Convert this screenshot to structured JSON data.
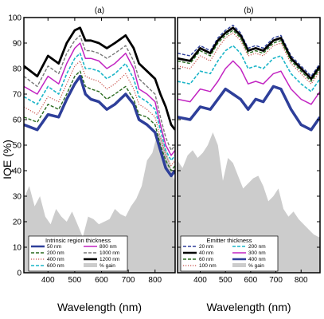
{
  "ylabel": "IQE (%)",
  "chart_data": [
    {
      "type": "line",
      "panel_label": "(a)",
      "xlabel": "Wavelength (nm)",
      "ylabel": "IQE (%)",
      "xlim": [
        310,
        875
      ],
      "ylim": [
        0,
        100
      ],
      "xticks": [
        400,
        500,
        600,
        700,
        800
      ],
      "yticks": [
        0,
        10,
        20,
        30,
        40,
        50,
        60,
        70,
        80,
        90,
        100
      ],
      "grid": false,
      "legend_title": "Intrinsic region thickness",
      "legend_placement": "bottom-left",
      "x": [
        310,
        360,
        400,
        440,
        470,
        500,
        520,
        540,
        560,
        590,
        620,
        650,
        690,
        720,
        740,
        770,
        800,
        820,
        840,
        860,
        875
      ],
      "series": [
        {
          "name": "50 nm",
          "color": "#2e3f9a",
          "style": "solid",
          "width": 3.5,
          "values": [
            58,
            56,
            62,
            61,
            68,
            74,
            77,
            70,
            68,
            67,
            64,
            66,
            70,
            66,
            60,
            58,
            55,
            48,
            41,
            38,
            40
          ]
        },
        {
          "name": "200 nm",
          "color": "#2a6a1f",
          "style": "dashed",
          "width": 1.4,
          "values": [
            61,
            59,
            66,
            64,
            70,
            77,
            79,
            73,
            72,
            71,
            68,
            70,
            73,
            68,
            62,
            61,
            58,
            50,
            44,
            40,
            42
          ]
        },
        {
          "name": "400 nm",
          "color": "#c8504a",
          "style": "dotted",
          "width": 1.2,
          "values": [
            65,
            62,
            69,
            67,
            74,
            81,
            83,
            77,
            76,
            75,
            72,
            74,
            78,
            72,
            66,
            64,
            61,
            53,
            46,
            42,
            44
          ]
        },
        {
          "name": "600 nm",
          "color": "#1bb5c8",
          "style": "dashed",
          "width": 1.6,
          "values": [
            69,
            66,
            73,
            70,
            78,
            84,
            86,
            80,
            80,
            79,
            76,
            78,
            82,
            76,
            69,
            67,
            64,
            56,
            48,
            44,
            46
          ]
        },
        {
          "name": "800 nm",
          "color": "#c224c2",
          "style": "solid",
          "width": 1.5,
          "values": [
            73,
            70,
            77,
            74,
            82,
            88,
            90,
            84,
            84,
            83,
            80,
            82,
            86,
            80,
            72,
            70,
            67,
            58,
            50,
            46,
            48
          ]
        },
        {
          "name": "1000 nm",
          "color": "#777777",
          "style": "dashed",
          "width": 1.4,
          "values": [
            77,
            73,
            81,
            78,
            86,
            91,
            93,
            87,
            87,
            86,
            84,
            86,
            89,
            83,
            76,
            73,
            70,
            61,
            53,
            48,
            50
          ]
        },
        {
          "name": "1200 nm",
          "color": "#000000",
          "style": "solid",
          "width": 2.8,
          "values": [
            81,
            77,
            85,
            82,
            90,
            95,
            96,
            91,
            91,
            90,
            88,
            90,
            93,
            88,
            82,
            79,
            76,
            70,
            65,
            58,
            56
          ]
        }
      ],
      "gain": {
        "name": "% gain",
        "color": "#cccccc",
        "x": [
          310,
          330,
          350,
          370,
          390,
          410,
          430,
          450,
          470,
          490,
          510,
          530,
          550,
          570,
          590,
          610,
          630,
          650,
          670,
          690,
          710,
          730,
          750,
          770,
          790,
          810,
          830,
          850,
          870,
          875
        ],
        "values": [
          29,
          34,
          26,
          30,
          22,
          19,
          25,
          22,
          20,
          24,
          19,
          14,
          22,
          21,
          19,
          20,
          21,
          25,
          23,
          22,
          26,
          29,
          34,
          44,
          47,
          55,
          52,
          45,
          37,
          36
        ]
      }
    },
    {
      "type": "line",
      "panel_label": "(b)",
      "xlabel": "Wavelength (nm)",
      "xlim": [
        310,
        875
      ],
      "ylim": [
        0,
        100
      ],
      "xticks": [
        400,
        500,
        600,
        700,
        800
      ],
      "grid": false,
      "legend_title": "Emitter thickness",
      "legend_placement": "bottom-left",
      "x": [
        310,
        360,
        400,
        440,
        470,
        500,
        530,
        560,
        590,
        620,
        650,
        690,
        720,
        760,
        800,
        840,
        875
      ],
      "series": [
        {
          "name": "20 nm",
          "color": "#2e3f9a",
          "style": "dashed",
          "width": 1.4,
          "values": [
            86,
            85,
            89,
            87,
            92,
            95,
            97,
            94,
            88,
            89,
            88,
            92,
            93,
            85,
            81,
            77,
            82
          ]
        },
        {
          "name": "40 nm",
          "color": "#000000",
          "style": "solid",
          "width": 2.8,
          "values": [
            84,
            83,
            88,
            86,
            91,
            94,
            96,
            93,
            87,
            88,
            87,
            91,
            92,
            84,
            80,
            76,
            81
          ]
        },
        {
          "name": "60 nm",
          "color": "#2a6a1f",
          "style": "dashed",
          "width": 1.4,
          "values": [
            83,
            82,
            87,
            85,
            90,
            93,
            95,
            92,
            86,
            87,
            86,
            90,
            91,
            83,
            79,
            75,
            80
          ]
        },
        {
          "name": "100 nm",
          "color": "#c8504a",
          "style": "dotted",
          "width": 1.2,
          "values": [
            81,
            80,
            85,
            83,
            88,
            92,
            94,
            91,
            85,
            86,
            85,
            89,
            90,
            82,
            78,
            74,
            79
          ]
        },
        {
          "name": "200 nm",
          "color": "#1bb5c8",
          "style": "dashed",
          "width": 1.6,
          "values": [
            75,
            74,
            79,
            78,
            83,
            87,
            89,
            86,
            80,
            81,
            80,
            84,
            85,
            78,
            74,
            71,
            76
          ]
        },
        {
          "name": "300 nm",
          "color": "#c224c2",
          "style": "solid",
          "width": 1.5,
          "values": [
            68,
            67,
            72,
            71,
            75,
            80,
            83,
            80,
            74,
            75,
            74,
            78,
            79,
            72,
            68,
            66,
            71
          ]
        },
        {
          "name": "400 nm",
          "color": "#2e3f9a",
          "style": "solid",
          "width": 3.5,
          "values": [
            61,
            60,
            65,
            64,
            68,
            72,
            70,
            68,
            64,
            68,
            67,
            73,
            72,
            64,
            58,
            56,
            61
          ]
        }
      ],
      "gain": {
        "name": "% gain",
        "color": "#cccccc",
        "x": [
          310,
          330,
          350,
          370,
          390,
          410,
          430,
          450,
          470,
          490,
          510,
          530,
          550,
          570,
          590,
          610,
          630,
          650,
          670,
          690,
          710,
          730,
          750,
          770,
          790,
          810,
          830,
          850,
          870,
          875
        ],
        "values": [
          44,
          41,
          46,
          48,
          45,
          47,
          50,
          55,
          50,
          36,
          45,
          43,
          38,
          33,
          35,
          37,
          38,
          34,
          28,
          30,
          33,
          25,
          22,
          24,
          21,
          19,
          17,
          15,
          14,
          14
        ]
      }
    }
  ]
}
